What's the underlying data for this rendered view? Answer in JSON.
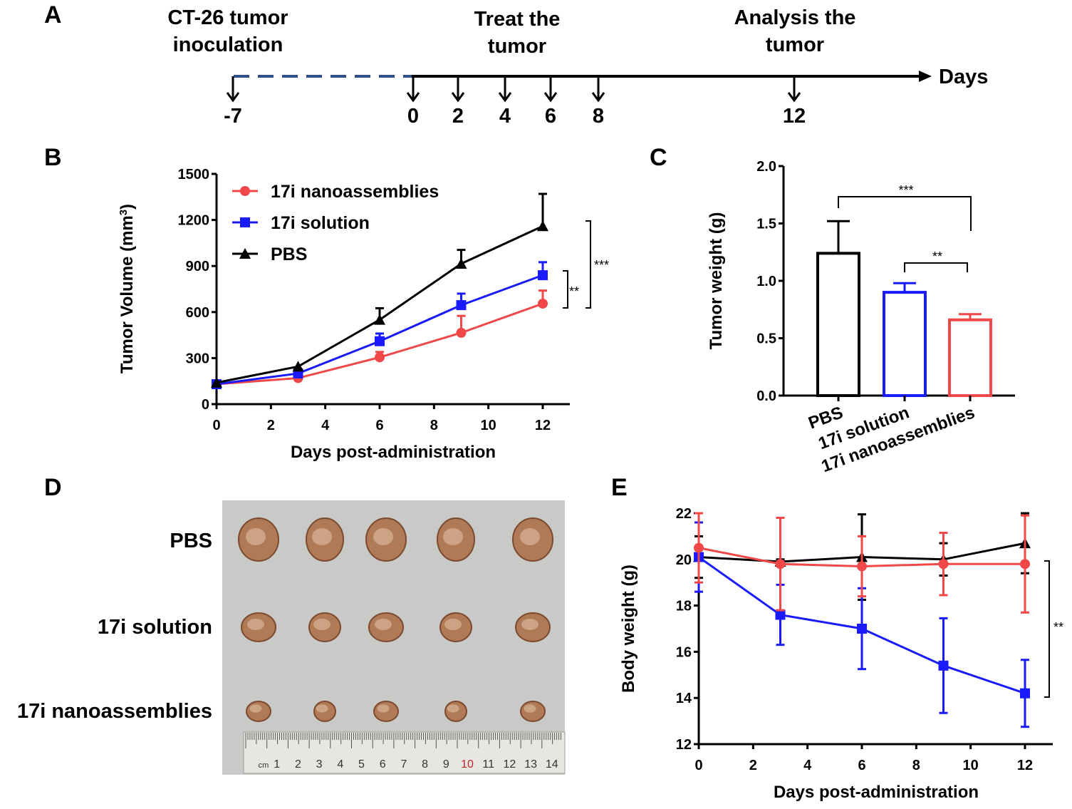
{
  "panels": {
    "a": "A",
    "b": "B",
    "c": "C",
    "d": "D",
    "e": "E"
  },
  "timeline": {
    "events": [
      {
        "label_line1": "CT-26 tumor",
        "label_line2": "inoculation"
      },
      {
        "label_line1": "Treat the",
        "label_line2": "tumor"
      },
      {
        "label_line1": "Analysis the",
        "label_line2": "tumor"
      }
    ],
    "axis_label": "Days",
    "ticks": [
      "-7",
      "0",
      "2",
      "4",
      "6",
      "8",
      "12"
    ],
    "colors": {
      "pre_treatment_dashed": "#2f4f8f",
      "axis": "#000000"
    }
  },
  "chart_data": [
    {
      "id": "B",
      "type": "line",
      "xlabel": "Days post-administration",
      "ylabel": "Tumor Volume (mm3)",
      "xlim": [
        0,
        13
      ],
      "ylim": [
        0,
        1500
      ],
      "xticks": [
        "0",
        "2",
        "4",
        "6",
        "8",
        "10",
        "12"
      ],
      "yticks": [
        "0",
        "300",
        "600",
        "900",
        "1200",
        "1500"
      ],
      "legend": "top-left",
      "x": [
        0,
        3,
        6,
        9,
        12
      ],
      "series": [
        {
          "name": "17i nanoassemblies",
          "color": "#f04848",
          "marker": "circle",
          "values": [
            130,
            170,
            305,
            465,
            655
          ],
          "error": [
            0,
            0,
            35,
            110,
            85
          ]
        },
        {
          "name": "17i solution",
          "color": "#1a1aff",
          "marker": "square",
          "values": [
            130,
            200,
            410,
            645,
            840
          ],
          "error": [
            0,
            0,
            50,
            75,
            85
          ]
        },
        {
          "name": "PBS",
          "color": "#000000",
          "marker": "triangle",
          "values": [
            140,
            245,
            550,
            915,
            1160
          ],
          "error": [
            0,
            0,
            75,
            90,
            210
          ]
        }
      ],
      "annotations": [
        "**",
        "***"
      ]
    },
    {
      "id": "C",
      "type": "bar",
      "ylabel": "Tumor weight (g)",
      "ylim": [
        0,
        2.0
      ],
      "yticks": [
        "0.0",
        "0.5",
        "1.0",
        "1.5",
        "2.0"
      ],
      "categories": [
        "PBS",
        "17i solution",
        "17i nanoassemblies"
      ],
      "values": [
        1.24,
        0.9,
        0.66
      ],
      "error": [
        0.28,
        0.08,
        0.05
      ],
      "colors": [
        "#000000",
        "#1a1aff",
        "#f04848"
      ],
      "annotations": [
        "***",
        "**"
      ]
    },
    {
      "id": "E",
      "type": "line",
      "xlabel": "Days post-administration",
      "ylabel": "Body weight (g)",
      "xlim": [
        0,
        13
      ],
      "ylim": [
        12,
        22
      ],
      "xticks": [
        "0",
        "2",
        "4",
        "6",
        "8",
        "10",
        "12"
      ],
      "yticks": [
        "12",
        "14",
        "16",
        "18",
        "20",
        "22"
      ],
      "x": [
        0,
        3,
        6,
        9,
        12
      ],
      "series": [
        {
          "color": "#000000",
          "marker": "triangle",
          "values": [
            20.1,
            19.9,
            20.1,
            20.0,
            20.7
          ],
          "error": [
            0.9,
            0.1,
            1.85,
            0.7,
            1.3
          ]
        },
        {
          "color": "#1a1aff",
          "marker": "square",
          "values": [
            20.1,
            17.6,
            17.0,
            15.4,
            14.2
          ],
          "error": [
            1.5,
            1.3,
            1.75,
            2.05,
            1.45
          ]
        },
        {
          "color": "#f04848",
          "marker": "circle",
          "values": [
            20.5,
            19.8,
            19.7,
            19.8,
            19.8
          ],
          "error": [
            1.5,
            2.0,
            1.3,
            1.35,
            2.1
          ]
        }
      ],
      "annotations": [
        "**"
      ]
    }
  ],
  "photo": {
    "row_labels": [
      "PBS",
      "17i solution",
      "17i nanoassemblies"
    ],
    "ruler_numbers": [
      "cm",
      "1",
      "2",
      "3",
      "4",
      "5",
      "6",
      "7",
      "8",
      "9",
      "10",
      "11",
      "12",
      "13",
      "14"
    ]
  }
}
